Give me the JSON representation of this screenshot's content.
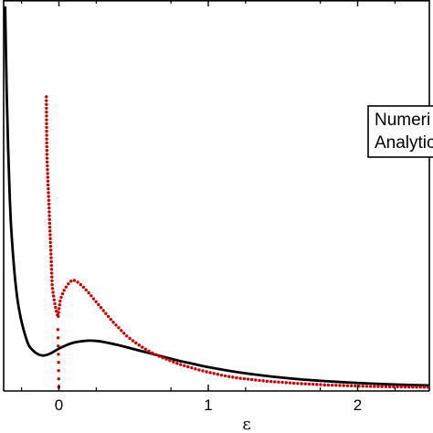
{
  "chart_data": {
    "type": "line",
    "title": "",
    "xlabel": "ε",
    "ylabel": "",
    "xlim": [
      -0.37,
      2.48
    ],
    "x_ticks": [
      0,
      1,
      2
    ],
    "x_tick_labels": [
      "0",
      "1",
      "2"
    ],
    "grid": false,
    "legend": {
      "placement": "right",
      "entries": [
        "Numeri",
        "Analytic"
      ]
    },
    "series": [
      {
        "name": "",
        "color": "#000000",
        "style": "solid",
        "points": [
          [
            -0.36,
            3.25
          ],
          [
            -0.35,
            2.6
          ],
          [
            -0.34,
            2.15
          ],
          [
            -0.33,
            1.8
          ],
          [
            -0.32,
            1.54
          ],
          [
            -0.3,
            1.22
          ],
          [
            -0.28,
            1.0
          ],
          [
            -0.26,
            0.86
          ],
          [
            -0.24,
            0.76
          ],
          [
            -0.22,
            0.68
          ],
          [
            -0.2,
            0.62
          ],
          [
            -0.17,
            0.58
          ],
          [
            -0.14,
            0.555
          ],
          [
            -0.11,
            0.545
          ],
          [
            -0.08,
            0.55
          ],
          [
            -0.05,
            0.565
          ],
          [
            -0.02,
            0.585
          ],
          [
            0.02,
            0.61
          ],
          [
            0.06,
            0.63
          ],
          [
            0.1,
            0.645
          ],
          [
            0.15,
            0.655
          ],
          [
            0.2,
            0.66
          ],
          [
            0.25,
            0.658
          ],
          [
            0.3,
            0.65
          ],
          [
            0.4,
            0.625
          ],
          [
            0.5,
            0.595
          ],
          [
            0.6,
            0.565
          ],
          [
            0.7,
            0.535
          ],
          [
            0.8,
            0.505
          ],
          [
            0.9,
            0.48
          ],
          [
            1.0,
            0.455
          ],
          [
            1.2,
            0.415
          ],
          [
            1.4,
            0.385
          ],
          [
            1.6,
            0.362
          ],
          [
            1.8,
            0.345
          ],
          [
            2.0,
            0.332
          ],
          [
            2.2,
            0.322
          ],
          [
            2.4,
            0.315
          ],
          [
            2.48,
            0.313
          ]
        ]
      },
      {
        "name": "",
        "color": "#d40000",
        "style": "dotted",
        "points": [
          [
            -0.084,
            2.55
          ],
          [
            -0.083,
            2.4
          ],
          [
            -0.082,
            2.25
          ],
          [
            -0.08,
            2.08
          ],
          [
            -0.06,
            1.52
          ],
          [
            -0.055,
            1.38
          ],
          [
            -0.05,
            1.24
          ],
          [
            -0.045,
            1.08
          ],
          [
            -0.03,
            0.96
          ],
          [
            -0.02,
            0.9
          ],
          [
            -0.01,
            0.86
          ],
          [
            -0.005,
            0.84
          ],
          [
            0.0,
            0.9
          ],
          [
            0.01,
            0.98
          ],
          [
            0.03,
            1.04
          ],
          [
            0.05,
            1.08
          ],
          [
            0.07,
            1.11
          ],
          [
            0.09,
            1.13
          ],
          [
            0.11,
            1.125
          ],
          [
            0.13,
            1.11
          ],
          [
            0.16,
            1.08
          ],
          [
            0.2,
            1.03
          ],
          [
            0.25,
            0.96
          ],
          [
            0.3,
            0.89
          ],
          [
            0.35,
            0.82
          ],
          [
            0.4,
            0.76
          ],
          [
            0.45,
            0.7
          ],
          [
            0.5,
            0.655
          ],
          [
            0.55,
            0.615
          ],
          [
            0.6,
            0.58
          ],
          [
            0.65,
            0.55
          ],
          [
            0.7,
            0.525
          ],
          [
            0.8,
            0.48
          ],
          [
            0.9,
            0.445
          ],
          [
            1.0,
            0.415
          ],
          [
            1.1,
            0.39
          ],
          [
            1.2,
            0.37
          ],
          [
            1.4,
            0.345
          ],
          [
            1.6,
            0.328
          ],
          [
            1.8,
            0.316
          ],
          [
            2.0,
            0.308
          ],
          [
            2.2,
            0.303
          ],
          [
            2.4,
            0.3
          ],
          [
            2.48,
            0.299
          ]
        ],
        "lower_branch": [
          [
            -0.001,
            0.3
          ],
          [
            -0.001,
            0.36
          ],
          [
            -0.002,
            0.42
          ],
          [
            -0.002,
            0.48
          ],
          [
            -0.003,
            0.54
          ],
          [
            -0.004,
            0.6
          ],
          [
            -0.005,
            0.66
          ],
          [
            -0.006,
            0.72
          ],
          [
            -0.008,
            0.78
          ]
        ]
      }
    ],
    "ylim": [
      0.27,
      3.3
    ]
  }
}
